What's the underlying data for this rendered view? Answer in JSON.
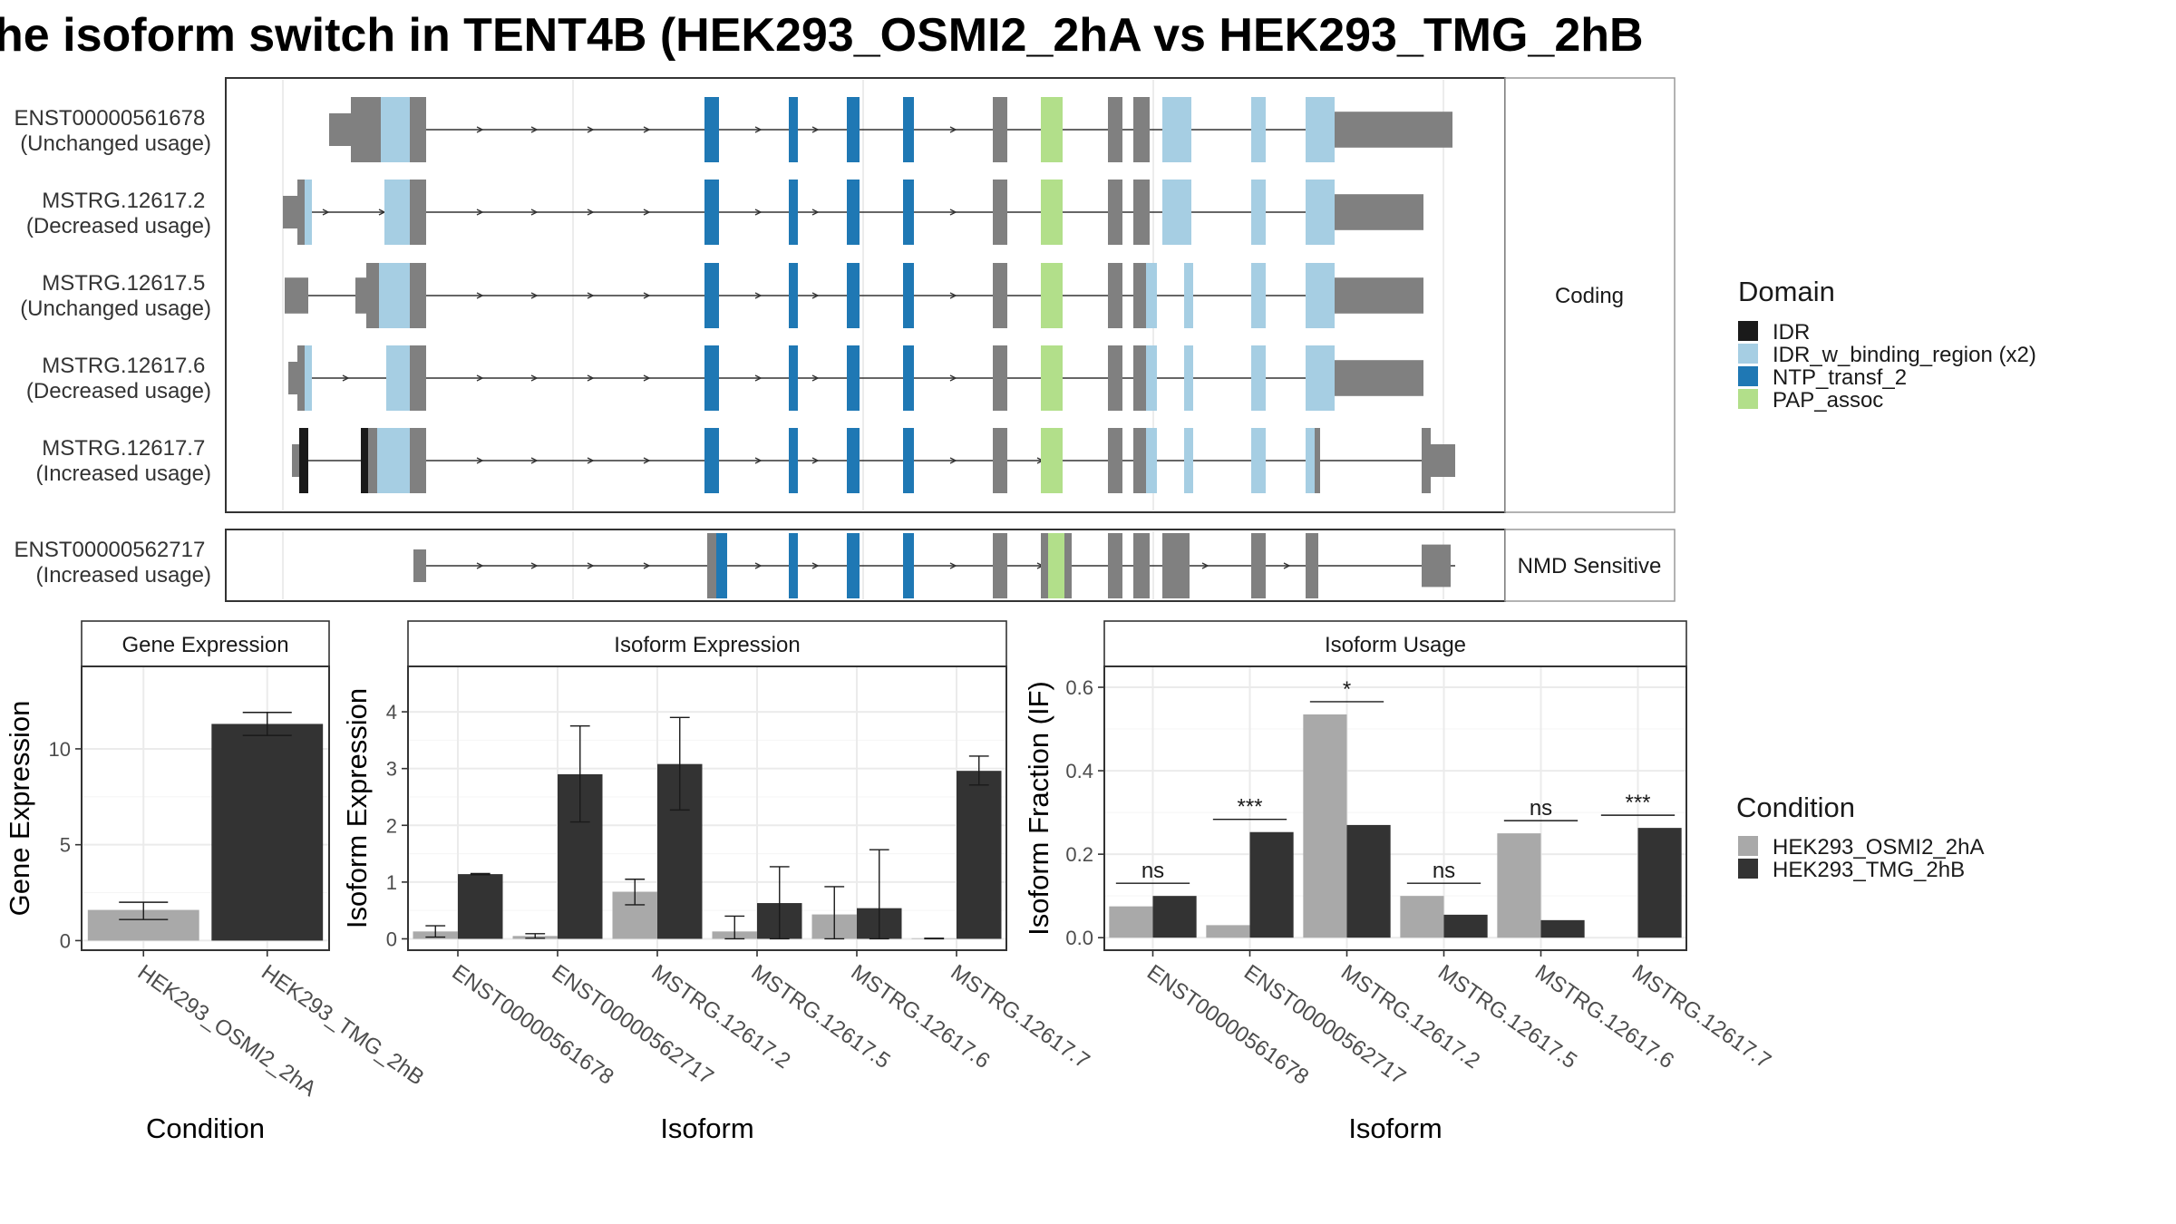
{
  "title": "he isoform switch in TENT4B (HEK293_OSMI2_2hA vs HEK293_TMG_2hB",
  "colors": {
    "exon": "#808080",
    "IDR": "#1a1a1a",
    "IDR_w_binding_region (x2)": "#a6cee3",
    "NTP_transf_2": "#1f78b4",
    "PAP_assoc": "#b2df8a",
    "condA": "#a9a9a9",
    "condB": "#333333"
  },
  "structure": {
    "coding_label": "Coding",
    "nmd_label": "NMD Sensitive",
    "isoforms": [
      {
        "id": "ENST00000561678",
        "usage": "(Unchanged usage)",
        "panel": "coding"
      },
      {
        "id": "MSTRG.12617.2",
        "usage": "(Decreased usage)",
        "panel": "coding"
      },
      {
        "id": "MSTRG.12617.5",
        "usage": "(Unchanged usage)",
        "panel": "coding"
      },
      {
        "id": "MSTRG.12617.6",
        "usage": "(Decreased usage)",
        "panel": "coding"
      },
      {
        "id": "MSTRG.12617.7",
        "usage": "(Increased usage)",
        "panel": "coding"
      },
      {
        "id": "ENST00000562717",
        "usage": "(Increased usage)",
        "panel": "nmd"
      }
    ]
  },
  "legend_domain": {
    "title": "Domain",
    "items": [
      "IDR",
      "IDR_w_binding_region (x2)",
      "NTP_transf_2",
      "PAP_assoc"
    ]
  },
  "legend_condition": {
    "title": "Condition",
    "items": [
      "HEK293_OSMI2_2hA",
      "HEK293_TMG_2hB"
    ]
  },
  "chart_data": [
    {
      "type": "bar",
      "title": "Gene Expression",
      "xlabel": "Condition",
      "ylabel": "Gene Expression",
      "categories": [
        "HEK293_OSMI2_2hA",
        "HEK293_TMG_2hB"
      ],
      "values": [
        1.6,
        11.3
      ],
      "errors": [
        [
          1.1,
          2.0
        ],
        [
          10.7,
          11.9
        ]
      ],
      "ylim": [
        -0.5,
        14.3
      ],
      "yticks": [
        0,
        5,
        10
      ]
    },
    {
      "type": "bar",
      "title": "Isoform Expression",
      "xlabel": "Isoform",
      "ylabel": "Isoform Expression",
      "categories": [
        "ENST00000561678",
        "ENST00000562717",
        "MSTRG.12617.2",
        "MSTRG.12617.5",
        "MSTRG.12617.6",
        "MSTRG.12617.7"
      ],
      "series": [
        {
          "name": "HEK293_OSMI2_2hA",
          "values": [
            0.13,
            0.05,
            0.83,
            0.13,
            0.43,
            0.01
          ],
          "errors": [
            [
              0.03,
              0.23
            ],
            [
              0.01,
              0.09
            ],
            [
              0.6,
              1.05
            ],
            [
              0.0,
              0.4
            ],
            [
              0.0,
              0.92
            ],
            [
              0.0,
              0.01
            ]
          ]
        },
        {
          "name": "HEK293_TMG_2hB",
          "values": [
            1.14,
            2.9,
            3.08,
            0.63,
            0.54,
            2.96
          ],
          "errors": [
            [
              1.13,
              1.15
            ],
            [
              2.06,
              3.75
            ],
            [
              2.27,
              3.9
            ],
            [
              0.0,
              1.27
            ],
            [
              0.0,
              1.57
            ],
            [
              2.71,
              3.22
            ]
          ]
        }
      ],
      "ylim": [
        -0.2,
        4.8
      ],
      "yticks": [
        0,
        1,
        2,
        3,
        4
      ]
    },
    {
      "type": "bar",
      "title": "Isoform Usage",
      "xlabel": "Isoform",
      "ylabel": "Isoform Fraction (IF)",
      "categories": [
        "ENST00000561678",
        "ENST00000562717",
        "MSTRG.12617.2",
        "MSTRG.12617.5",
        "MSTRG.12617.6",
        "MSTRG.12617.7"
      ],
      "series": [
        {
          "name": "HEK293_OSMI2_2hA",
          "values": [
            0.075,
            0.03,
            0.535,
            0.1,
            0.25,
            0.0
          ]
        },
        {
          "name": "HEK293_TMG_2hB",
          "values": [
            0.1,
            0.253,
            0.27,
            0.055,
            0.042,
            0.263
          ]
        }
      ],
      "significance": [
        "ns",
        "***",
        "*",
        "ns",
        "ns",
        "***"
      ],
      "ylim": [
        -0.03,
        0.65
      ],
      "yticks": [
        0.0,
        0.2,
        0.4,
        0.6
      ],
      "ytick_labels": [
        "0.0",
        "0.2",
        "0.4",
        "0.6"
      ]
    }
  ]
}
